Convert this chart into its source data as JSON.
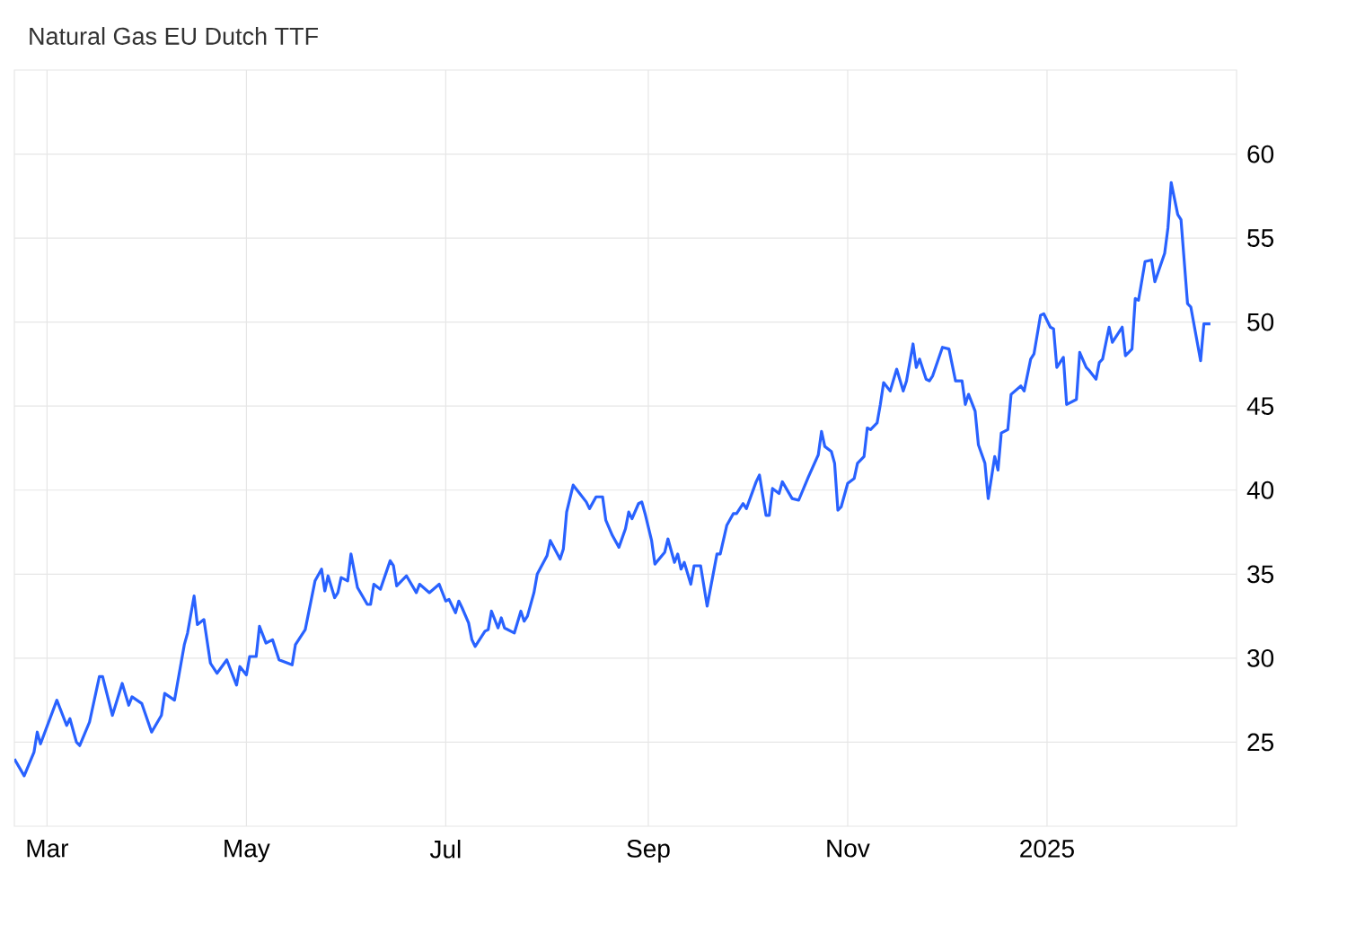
{
  "chart_data": {
    "type": "line",
    "title": "Natural Gas EU Dutch TTF",
    "color": "#2962ff",
    "grid": true,
    "xlim": [
      "2024-02-20",
      "2025-02-28"
    ],
    "ylim": [
      20,
      65
    ],
    "xticks": [
      {
        "value": "2024-03-01",
        "label": "Mar"
      },
      {
        "value": "2024-05-01",
        "label": "May"
      },
      {
        "value": "2024-07-01",
        "label": "Jul"
      },
      {
        "value": "2024-09-01",
        "label": "Sep"
      },
      {
        "value": "2024-11-01",
        "label": "Nov"
      },
      {
        "value": "2025-01-01",
        "label": "2025"
      }
    ],
    "yticks": [
      25,
      30,
      35,
      40,
      45,
      50,
      55,
      60
    ],
    "x": [
      "2024-02-20",
      "2024-02-23",
      "2024-02-26",
      "2024-02-27",
      "2024-02-28",
      "2024-03-04",
      "2024-03-07",
      "2024-03-08",
      "2024-03-10",
      "2024-03-11",
      "2024-03-14",
      "2024-03-17",
      "2024-03-18",
      "2024-03-21",
      "2024-03-24",
      "2024-03-26",
      "2024-03-27",
      "2024-03-30",
      "2024-04-02",
      "2024-04-05",
      "2024-04-06",
      "2024-04-09",
      "2024-04-12",
      "2024-04-13",
      "2024-04-15",
      "2024-04-16",
      "2024-04-18",
      "2024-04-20",
      "2024-04-22",
      "2024-04-25",
      "2024-04-28",
      "2024-04-29",
      "2024-05-01",
      "2024-05-02",
      "2024-05-04",
      "2024-05-05",
      "2024-05-07",
      "2024-05-09",
      "2024-05-11",
      "2024-05-15",
      "2024-05-16",
      "2024-05-19",
      "2024-05-22",
      "2024-05-24",
      "2024-05-25",
      "2024-05-26",
      "2024-05-28",
      "2024-05-29",
      "2024-05-30",
      "2024-06-01",
      "2024-06-02",
      "2024-06-04",
      "2024-06-07",
      "2024-06-08",
      "2024-06-09",
      "2024-06-11",
      "2024-06-14",
      "2024-06-15",
      "2024-06-16",
      "2024-06-19",
      "2024-06-22",
      "2024-06-23",
      "2024-06-26",
      "2024-06-29",
      "2024-07-01",
      "2024-07-02",
      "2024-07-04",
      "2024-07-05",
      "2024-07-06",
      "2024-07-08",
      "2024-07-09",
      "2024-07-10",
      "2024-07-13",
      "2024-07-14",
      "2024-07-15",
      "2024-07-17",
      "2024-07-18",
      "2024-07-19",
      "2024-07-22",
      "2024-07-24",
      "2024-07-25",
      "2024-07-26",
      "2024-07-28",
      "2024-07-29",
      "2024-08-01",
      "2024-08-02",
      "2024-08-05",
      "2024-08-06",
      "2024-08-07",
      "2024-08-09",
      "2024-08-11",
      "2024-08-13",
      "2024-08-14",
      "2024-08-16",
      "2024-08-18",
      "2024-08-19",
      "2024-08-21",
      "2024-08-23",
      "2024-08-25",
      "2024-08-26",
      "2024-08-27",
      "2024-08-29",
      "2024-08-30",
      "2024-08-31",
      "2024-09-02",
      "2024-09-03",
      "2024-09-06",
      "2024-09-07",
      "2024-09-09",
      "2024-09-10",
      "2024-09-11",
      "2024-09-12",
      "2024-09-14",
      "2024-09-15",
      "2024-09-17",
      "2024-09-19",
      "2024-09-22",
      "2024-09-23",
      "2024-09-25",
      "2024-09-27",
      "2024-09-28",
      "2024-09-30",
      "2024-10-01",
      "2024-10-04",
      "2024-10-05",
      "2024-10-07",
      "2024-10-08",
      "2024-10-09",
      "2024-10-11",
      "2024-10-12",
      "2024-10-15",
      "2024-10-17",
      "2024-10-20",
      "2024-10-23",
      "2024-10-24",
      "2024-10-25",
      "2024-10-27",
      "2024-10-28",
      "2024-10-29",
      "2024-10-30",
      "2024-11-01",
      "2024-11-03",
      "2024-11-04",
      "2024-11-06",
      "2024-11-07",
      "2024-11-08",
      "2024-11-10",
      "2024-11-11",
      "2024-11-12",
      "2024-11-14",
      "2024-11-16",
      "2024-11-18",
      "2024-11-19",
      "2024-11-21",
      "2024-11-22",
      "2024-11-23",
      "2024-11-25",
      "2024-11-26",
      "2024-11-27",
      "2024-11-30",
      "2024-12-02",
      "2024-12-04",
      "2024-12-06",
      "2024-12-07",
      "2024-12-08",
      "2024-12-10",
      "2024-12-11",
      "2024-12-13",
      "2024-12-14",
      "2024-12-16",
      "2024-12-17",
      "2024-12-18",
      "2024-12-20",
      "2024-12-21",
      "2024-12-24",
      "2024-12-25",
      "2024-12-27",
      "2024-12-28",
      "2024-12-30",
      "2024-12-31",
      "2025-01-02",
      "2025-01-03",
      "2025-01-04",
      "2025-01-06",
      "2025-01-07",
      "2025-01-10",
      "2025-01-11",
      "2025-01-13",
      "2025-01-14",
      "2025-01-16",
      "2025-01-17",
      "2025-01-18",
      "2025-01-20",
      "2025-01-21",
      "2025-01-24",
      "2025-01-25",
      "2025-01-27",
      "2025-01-28",
      "2025-01-29",
      "2025-01-31",
      "2025-02-02",
      "2025-02-03",
      "2025-02-06",
      "2025-02-07",
      "2025-02-08",
      "2025-02-10",
      "2025-02-11",
      "2025-02-13",
      "2025-02-14",
      "2025-02-17",
      "2025-02-18",
      "2025-02-20"
    ],
    "values": [
      24.0,
      23.0,
      24.4,
      25.6,
      24.9,
      27.5,
      26.0,
      26.4,
      25.0,
      24.8,
      26.2,
      28.9,
      28.9,
      26.6,
      28.5,
      27.2,
      27.7,
      27.3,
      25.6,
      26.6,
      27.9,
      27.5,
      30.8,
      31.5,
      33.7,
      32.0,
      32.3,
      29.7,
      29.1,
      29.9,
      28.4,
      29.5,
      29.0,
      30.1,
      30.1,
      31.9,
      30.9,
      31.1,
      29.9,
      29.6,
      30.8,
      31.7,
      34.6,
      35.3,
      34.0,
      34.9,
      33.6,
      33.9,
      34.8,
      34.6,
      36.2,
      34.2,
      33.2,
      33.2,
      34.4,
      34.1,
      35.8,
      35.5,
      34.3,
      34.9,
      33.9,
      34.4,
      33.9,
      34.4,
      33.4,
      33.5,
      32.7,
      33.4,
      33.0,
      32.1,
      31.1,
      30.7,
      31.6,
      31.7,
      32.8,
      31.8,
      32.4,
      31.8,
      31.5,
      32.8,
      32.2,
      32.5,
      33.9,
      35.0,
      36.1,
      37.0,
      35.9,
      36.5,
      38.7,
      40.3,
      39.8,
      39.3,
      38.9,
      39.6,
      39.6,
      38.2,
      37.3,
      36.6,
      37.7,
      38.7,
      38.3,
      39.2,
      39.3,
      38.6,
      37.0,
      35.6,
      36.3,
      37.1,
      35.7,
      36.2,
      35.3,
      35.7,
      34.4,
      35.5,
      35.5,
      33.1,
      36.2,
      36.2,
      37.9,
      38.6,
      38.6,
      39.2,
      38.9,
      40.5,
      40.9,
      38.5,
      38.5,
      40.1,
      39.8,
      40.5,
      39.5,
      39.4,
      40.8,
      42.1,
      43.5,
      42.6,
      42.3,
      41.6,
      38.8,
      39.0,
      40.4,
      40.7,
      41.6,
      42.0,
      43.7,
      43.6,
      44.0,
      45.1,
      46.4,
      45.9,
      47.2,
      45.9,
      46.5,
      48.7,
      47.3,
      47.8,
      46.6,
      46.5,
      46.8,
      48.5,
      48.4,
      46.5,
      46.5,
      45.1,
      45.7,
      44.7,
      42.7,
      41.6,
      39.5,
      42.0,
      41.2,
      43.4,
      43.6,
      45.7,
      46.2,
      45.9,
      47.8,
      48.1,
      50.4,
      50.5,
      49.7,
      49.6,
      47.3,
      47.9,
      45.1,
      45.4,
      48.2,
      47.3,
      47.1,
      46.6,
      47.6,
      47.8,
      49.7,
      48.8,
      49.7,
      48.0,
      48.4,
      51.4,
      51.3,
      53.6,
      53.7,
      52.4,
      54.1,
      55.6,
      58.3,
      56.4,
      56.1,
      51.1,
      50.9,
      47.7,
      49.9,
      49.9
    ]
  }
}
